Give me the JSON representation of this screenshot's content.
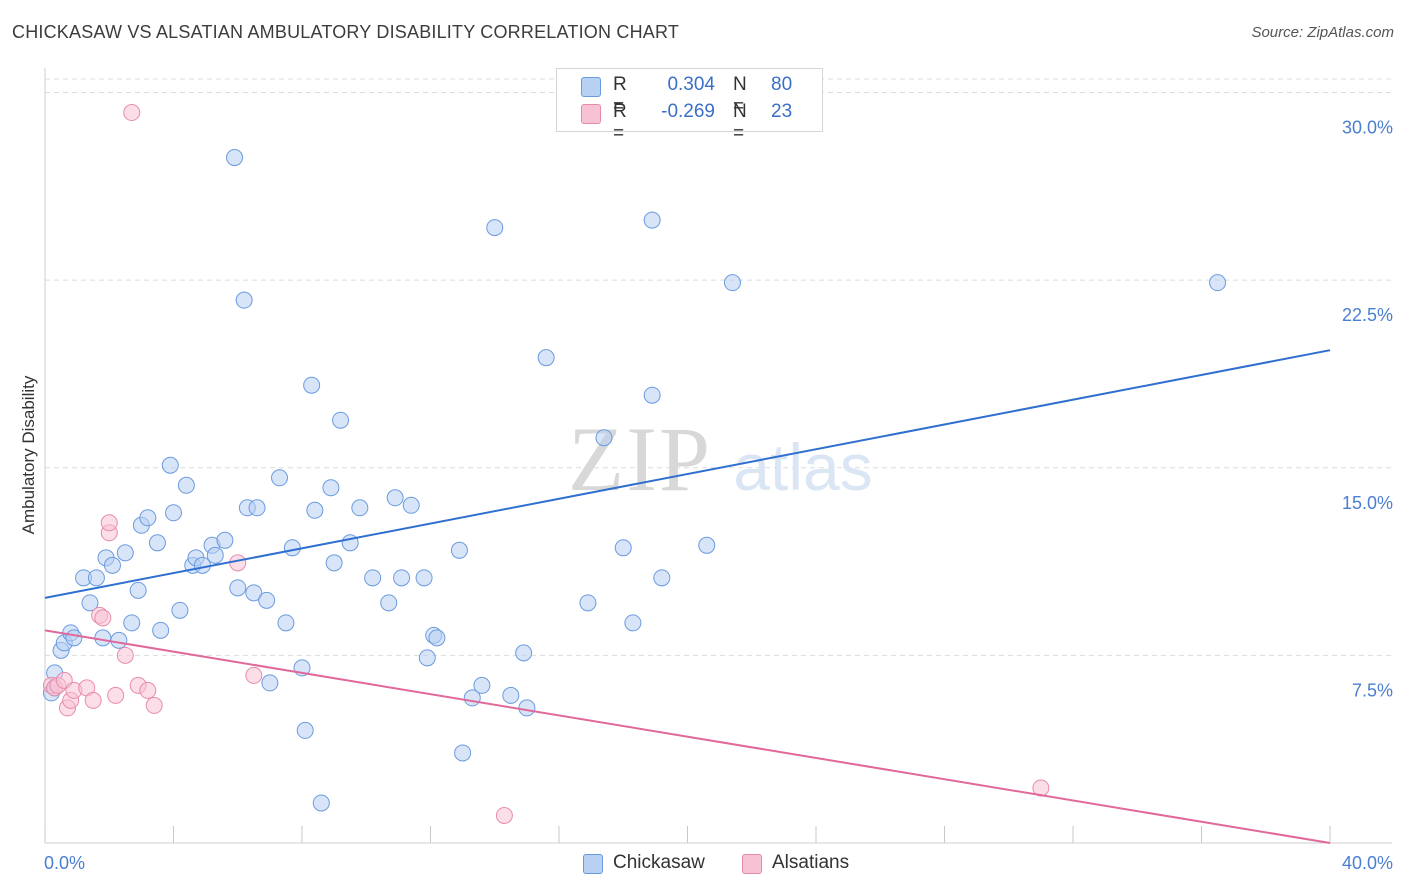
{
  "chart_data": {
    "type": "scatter",
    "title": "CHICKASAW VS ALSATIAN AMBULATORY DISABILITY CORRELATION CHART",
    "source": "Source: ZipAtlas.com",
    "ylabel": "Ambulatory Disability",
    "xlabel": "",
    "xlim": [
      0,
      40
    ],
    "ylim": [
      0,
      30.7
    ],
    "x_tick_labels": [
      "0.0%",
      "40.0%"
    ],
    "y_ticks": [
      7.5,
      15.0,
      22.5,
      30.0
    ],
    "y_tick_labels": [
      "7.5%",
      "15.0%",
      "22.5%",
      "30.0%"
    ],
    "watermark": {
      "zip": "ZIP",
      "atlas": "atlas"
    },
    "legend_stats": {
      "r_label": "R =",
      "n_label": "N =",
      "rows": [
        {
          "series": "Chickasaw",
          "r": "0.304",
          "n": "80"
        },
        {
          "series": "Alsatians",
          "r": "-0.269",
          "n": "23"
        }
      ]
    },
    "series": [
      {
        "name": "Chickasaw",
        "color": "#6a9be0",
        "fill": "#b8d0f2",
        "trend": {
          "x": [
            0,
            40
          ],
          "y": [
            9.8,
            19.7
          ]
        },
        "points": [
          [
            0.2,
            6.0
          ],
          [
            0.3,
            6.2
          ],
          [
            0.3,
            6.8
          ],
          [
            0.5,
            7.7
          ],
          [
            0.6,
            8.0
          ],
          [
            0.8,
            8.4
          ],
          [
            0.9,
            8.2
          ],
          [
            1.2,
            10.6
          ],
          [
            1.4,
            9.6
          ],
          [
            1.6,
            10.6
          ],
          [
            1.8,
            8.2
          ],
          [
            1.9,
            11.4
          ],
          [
            2.1,
            11.1
          ],
          [
            2.3,
            8.1
          ],
          [
            2.5,
            11.6
          ],
          [
            2.7,
            8.8
          ],
          [
            2.9,
            10.1
          ],
          [
            3.0,
            12.7
          ],
          [
            3.2,
            13.0
          ],
          [
            3.5,
            12.0
          ],
          [
            3.6,
            8.5
          ],
          [
            3.9,
            15.1
          ],
          [
            4.0,
            13.2
          ],
          [
            4.2,
            9.3
          ],
          [
            4.4,
            14.3
          ],
          [
            4.6,
            11.1
          ],
          [
            4.7,
            11.4
          ],
          [
            4.9,
            11.1
          ],
          [
            5.2,
            11.9
          ],
          [
            5.3,
            11.5
          ],
          [
            5.6,
            12.1
          ],
          [
            5.9,
            27.4
          ],
          [
            6.0,
            10.2
          ],
          [
            6.2,
            21.7
          ],
          [
            6.3,
            13.4
          ],
          [
            6.5,
            10.0
          ],
          [
            6.6,
            13.4
          ],
          [
            6.9,
            9.7
          ],
          [
            7.0,
            6.4
          ],
          [
            7.3,
            14.6
          ],
          [
            7.5,
            8.8
          ],
          [
            7.7,
            11.8
          ],
          [
            8.0,
            7.0
          ],
          [
            8.1,
            4.5
          ],
          [
            8.3,
            18.3
          ],
          [
            8.4,
            13.3
          ],
          [
            8.6,
            1.6
          ],
          [
            8.9,
            14.2
          ],
          [
            9.0,
            11.2
          ],
          [
            9.2,
            16.9
          ],
          [
            9.5,
            12.0
          ],
          [
            9.8,
            13.4
          ],
          [
            10.2,
            10.6
          ],
          [
            10.7,
            9.6
          ],
          [
            10.9,
            13.8
          ],
          [
            11.1,
            10.6
          ],
          [
            11.4,
            13.5
          ],
          [
            11.8,
            10.6
          ],
          [
            11.9,
            7.4
          ],
          [
            12.1,
            8.3
          ],
          [
            12.2,
            8.2
          ],
          [
            12.9,
            11.7
          ],
          [
            13.0,
            3.6
          ],
          [
            13.3,
            5.8
          ],
          [
            13.6,
            6.3
          ],
          [
            14.0,
            24.6
          ],
          [
            14.5,
            5.9
          ],
          [
            15.0,
            5.4
          ],
          [
            15.6,
            19.4
          ],
          [
            16.9,
            9.6
          ],
          [
            17.4,
            16.2
          ],
          [
            18.0,
            11.8
          ],
          [
            18.3,
            8.8
          ],
          [
            18.9,
            24.9
          ],
          [
            18.9,
            17.9
          ],
          [
            19.2,
            10.6
          ],
          [
            20.6,
            11.9
          ],
          [
            21.4,
            22.4
          ],
          [
            36.5,
            22.4
          ],
          [
            14.9,
            7.6
          ]
        ]
      },
      {
        "name": "Alsatians",
        "color": "#e88bab",
        "fill": "#f7c3d4",
        "trend": {
          "x": [
            0,
            40
          ],
          "y": [
            8.5,
            0.0
          ]
        },
        "points": [
          [
            0.2,
            6.3
          ],
          [
            0.3,
            6.2
          ],
          [
            0.4,
            6.3
          ],
          [
            0.6,
            6.5
          ],
          [
            0.7,
            5.4
          ],
          [
            0.8,
            5.7
          ],
          [
            0.9,
            6.1
          ],
          [
            1.3,
            6.2
          ],
          [
            1.5,
            5.7
          ],
          [
            1.7,
            9.1
          ],
          [
            1.8,
            9.0
          ],
          [
            2.0,
            12.4
          ],
          [
            2.0,
            12.8
          ],
          [
            2.2,
            5.9
          ],
          [
            2.5,
            7.5
          ],
          [
            2.7,
            29.2
          ],
          [
            2.9,
            6.3
          ],
          [
            3.2,
            6.1
          ],
          [
            3.4,
            5.5
          ],
          [
            6.0,
            11.2
          ],
          [
            6.5,
            6.7
          ],
          [
            14.3,
            1.1
          ],
          [
            31.0,
            2.2
          ]
        ]
      }
    ]
  }
}
